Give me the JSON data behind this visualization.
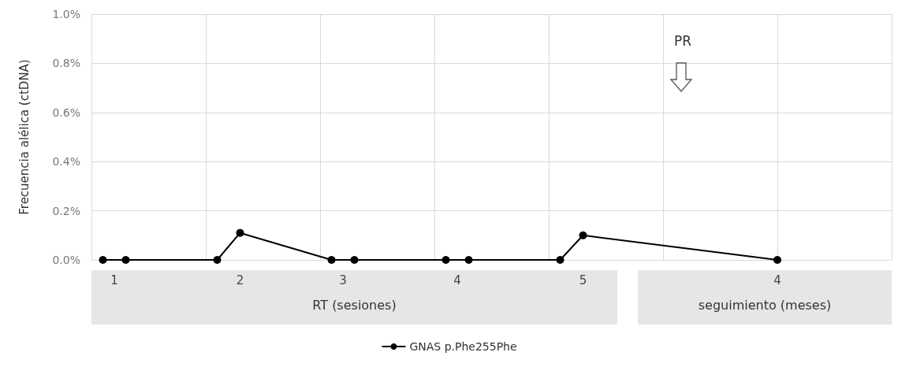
{
  "chart_data": {
    "type": "line",
    "ylabel": "Frecuencia alélica (ctDNA)",
    "categories": [
      null,
      null,
      "1",
      null,
      null,
      null,
      null,
      null,
      null,
      null,
      null,
      null,
      null,
      "2",
      null,
      null,
      null,
      null,
      null,
      null,
      null,
      null,
      "3",
      null,
      null,
      null,
      null,
      null,
      null,
      null,
      null,
      null,
      "4",
      null,
      null,
      null,
      null,
      null,
      null,
      null,
      null,
      null,
      null,
      "5",
      null,
      null,
      null,
      null,
      null,
      null,
      null,
      null,
      null,
      null,
      null,
      null,
      null,
      null,
      null,
      null,
      "4",
      null,
      null,
      null,
      null,
      null,
      null,
      null,
      null,
      null,
      null
    ],
    "series": [
      {
        "name": "GNAS p.Phe255Phe",
        "color": "#000000",
        "values": [
          null,
          0,
          null,
          0,
          null,
          null,
          null,
          null,
          null,
          null,
          null,
          0,
          null,
          0.11,
          null,
          null,
          null,
          null,
          null,
          null,
          null,
          0,
          null,
          0,
          null,
          null,
          null,
          null,
          null,
          null,
          null,
          0,
          null,
          0,
          null,
          null,
          null,
          null,
          null,
          null,
          null,
          0,
          null,
          0.1,
          null,
          null,
          null,
          null,
          null,
          null,
          null,
          null,
          null,
          null,
          null,
          null,
          null,
          null,
          null,
          null,
          0,
          null,
          null,
          null,
          null,
          null,
          null,
          null,
          null,
          null,
          null
        ]
      }
    ],
    "ylim": [
      0,
      1.0
    ],
    "yticks": [
      {
        "value": 0,
        "label": "0.0%"
      },
      {
        "value": 0.2,
        "label": "0.2%"
      },
      {
        "value": 0.4,
        "label": "0.4%"
      },
      {
        "value": 0.6,
        "label": "0.6%"
      },
      {
        "value": 0.8,
        "label": "0.8%"
      },
      {
        "value": 1.0,
        "label": "1.0%"
      }
    ],
    "annotations": [
      "RT (sesiones)",
      "seguimiento (meses)",
      "PR"
    ],
    "grid": true,
    "legend": "bottom",
    "marker": "circle",
    "line_style": "solid"
  }
}
